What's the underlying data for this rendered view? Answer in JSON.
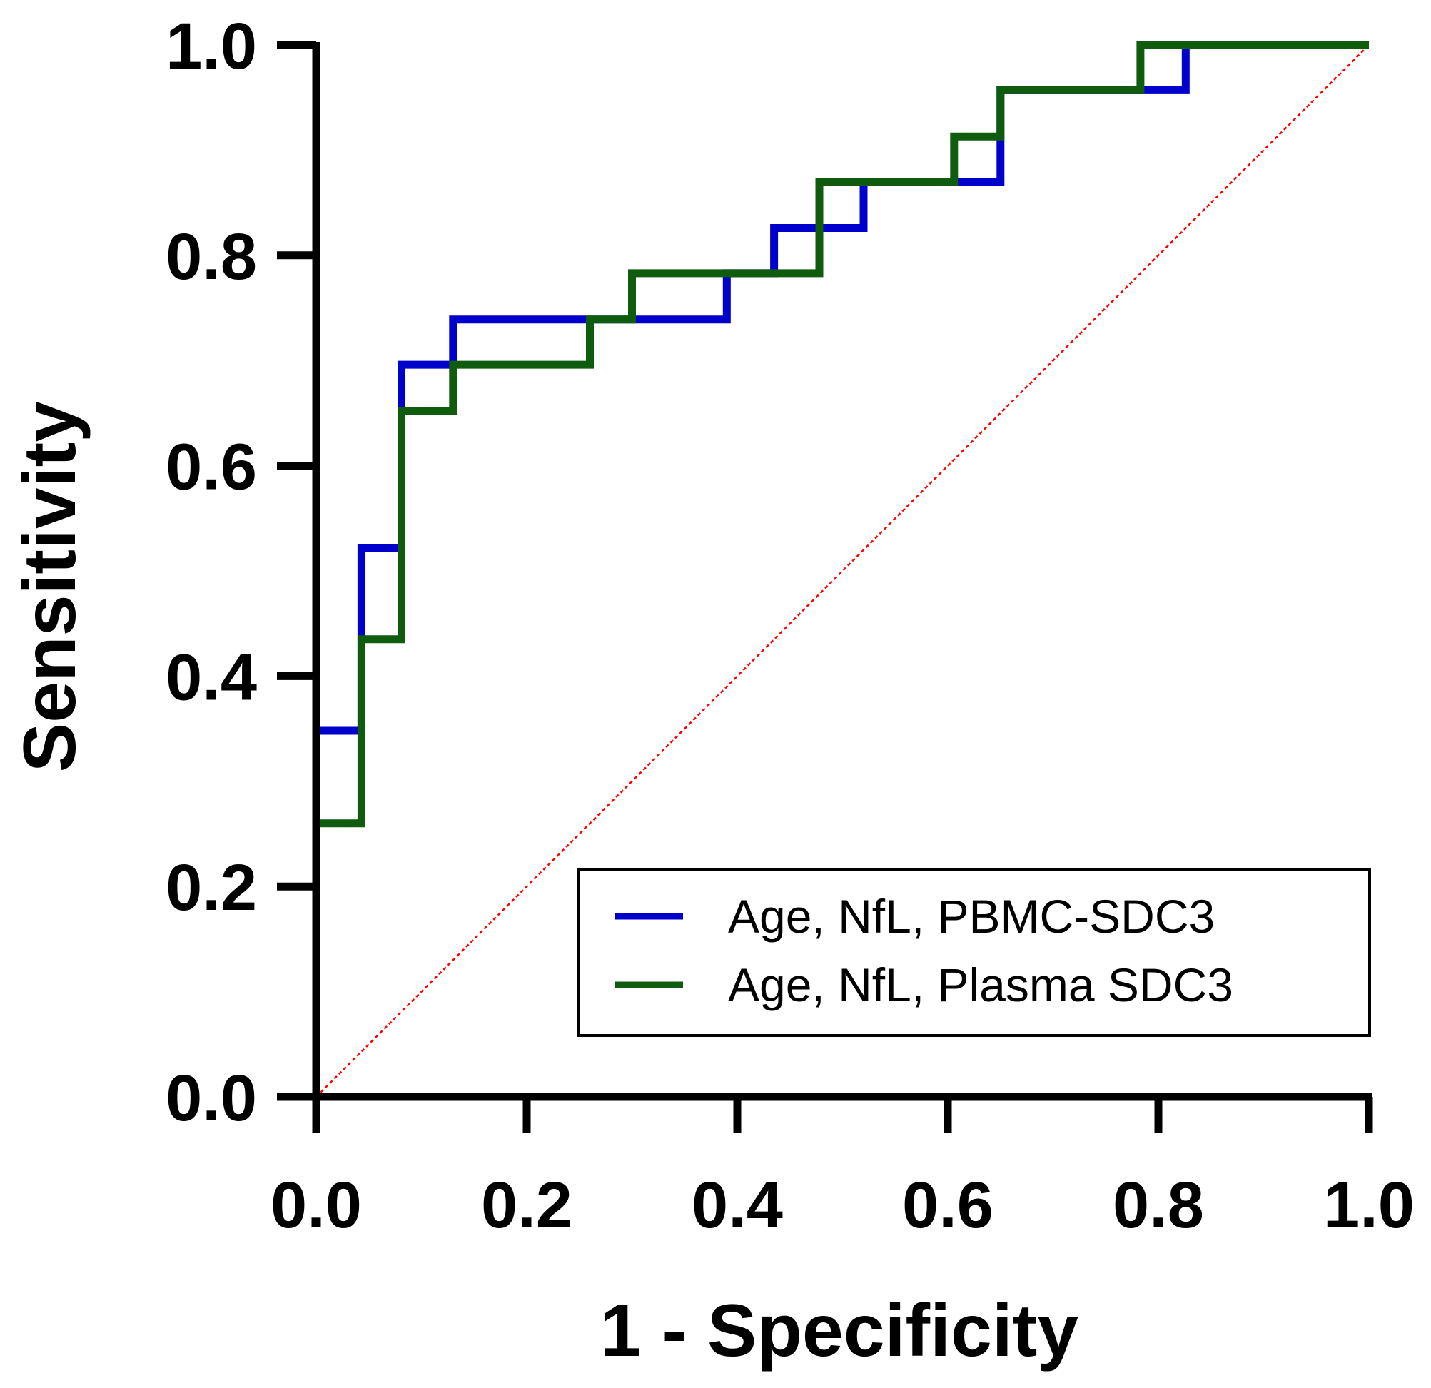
{
  "chart_data": {
    "type": "line",
    "title": "",
    "xlabel": "1 - Specificity",
    "ylabel": "Sensitivity",
    "xlim": [
      0,
      1
    ],
    "ylim": [
      0,
      1
    ],
    "x_ticks": [
      0.0,
      0.2,
      0.4,
      0.6,
      0.8,
      1.0
    ],
    "y_ticks": [
      0.0,
      0.2,
      0.4,
      0.6,
      0.8,
      1.0
    ],
    "x_tick_labels": [
      "0.0",
      "0.2",
      "0.4",
      "0.6",
      "0.8",
      "1.0"
    ],
    "y_tick_labels": [
      "0.0",
      "0.2",
      "0.4",
      "0.6",
      "0.8",
      "1.0"
    ],
    "grid": false,
    "legend_position": "bottom-right",
    "series": [
      {
        "name": "Age, NfL, PBMC-SDC3",
        "color": "#0000cc",
        "x": [
          0,
          0,
          0,
          0.043,
          0.043,
          0.081,
          0.081,
          0.13,
          0.13,
          0.26,
          0.26,
          0.3,
          0.3,
          0.39,
          0.39,
          0.435,
          0.435,
          0.52,
          0.52,
          0.61,
          0.61,
          0.65,
          0.65,
          0.78,
          0.78,
          0.826,
          0.826,
          1.0
        ],
        "y": [
          0,
          0.26,
          0.348,
          0.348,
          0.522,
          0.522,
          0.696,
          0.696,
          0.739,
          0.739,
          0.739,
          0.739,
          0.739,
          0.739,
          0.783,
          0.783,
          0.826,
          0.826,
          0.87,
          0.87,
          0.87,
          0.87,
          0.957,
          0.957,
          0.957,
          0.957,
          1.0,
          1.0
        ]
      },
      {
        "name": "Age, NfL, Plasma SDC3",
        "color": "#0f5c0f",
        "x": [
          0,
          0,
          0.043,
          0.043,
          0.081,
          0.081,
          0.13,
          0.13,
          0.26,
          0.26,
          0.3,
          0.3,
          0.478,
          0.478,
          0.606,
          0.606,
          0.65,
          0.65,
          0.783,
          0.783,
          1.0
        ],
        "y": [
          0,
          0.26,
          0.26,
          0.435,
          0.435,
          0.652,
          0.652,
          0.696,
          0.696,
          0.739,
          0.739,
          0.783,
          0.783,
          0.87,
          0.87,
          0.913,
          0.913,
          0.957,
          0.957,
          1.0,
          1.0
        ]
      }
    ],
    "reference_line": {
      "name": "chance",
      "color": "#ff0000",
      "x": [
        0,
        1
      ],
      "y": [
        0,
        1
      ]
    }
  }
}
